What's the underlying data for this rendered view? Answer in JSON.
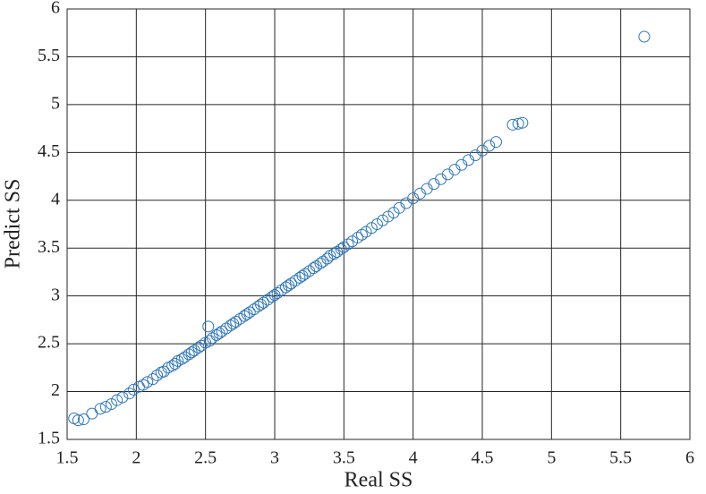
{
  "chart_data": {
    "type": "scatter",
    "x_label": "Real SS",
    "y_label": "Predict SS",
    "color": "#2e75b6",
    "grid": true,
    "xlim": [
      1.5,
      6
    ],
    "ylim": [
      1.5,
      6
    ],
    "xticks": [
      1.5,
      2,
      2.5,
      3,
      3.5,
      4,
      4.5,
      5,
      5.5,
      6
    ],
    "yticks": [
      1.5,
      2,
      2.5,
      3,
      3.5,
      4,
      4.5,
      5,
      5.5,
      6
    ],
    "series": [
      {
        "name": "SS",
        "x": [
          1.55,
          1.58,
          1.62,
          1.68,
          1.74,
          1.78,
          1.82,
          1.86,
          1.9,
          1.95,
          1.98,
          2.02,
          2.05,
          2.08,
          2.12,
          2.15,
          2.18,
          2.2,
          2.23,
          2.26,
          2.28,
          2.3,
          2.33,
          2.35,
          2.38,
          2.4,
          2.42,
          2.45,
          2.47,
          2.5,
          2.52,
          2.53,
          2.55,
          2.58,
          2.6,
          2.62,
          2.65,
          2.68,
          2.7,
          2.72,
          2.75,
          2.78,
          2.8,
          2.82,
          2.85,
          2.88,
          2.9,
          2.92,
          2.95,
          2.98,
          3.0,
          3.02,
          3.05,
          3.08,
          3.1,
          3.12,
          3.15,
          3.18,
          3.2,
          3.22,
          3.25,
          3.28,
          3.3,
          3.33,
          3.35,
          3.38,
          3.4,
          3.43,
          3.45,
          3.48,
          3.5,
          3.53,
          3.56,
          3.6,
          3.63,
          3.66,
          3.7,
          3.74,
          3.78,
          3.82,
          3.86,
          3.9,
          3.95,
          4.0,
          4.05,
          4.1,
          4.15,
          4.2,
          4.25,
          4.3,
          4.35,
          4.4,
          4.45,
          4.5,
          4.55,
          4.6,
          4.72,
          4.76,
          4.79,
          5.67
        ],
        "y": [
          1.72,
          1.7,
          1.71,
          1.77,
          1.82,
          1.84,
          1.87,
          1.91,
          1.94,
          1.98,
          2.02,
          2.05,
          2.07,
          2.1,
          2.13,
          2.17,
          2.2,
          2.21,
          2.25,
          2.27,
          2.29,
          2.32,
          2.34,
          2.36,
          2.39,
          2.41,
          2.43,
          2.46,
          2.48,
          2.51,
          2.68,
          2.53,
          2.56,
          2.59,
          2.61,
          2.63,
          2.66,
          2.69,
          2.71,
          2.73,
          2.76,
          2.79,
          2.81,
          2.83,
          2.86,
          2.89,
          2.91,
          2.93,
          2.96,
          2.99,
          3.01,
          3.03,
          3.06,
          3.09,
          3.11,
          3.13,
          3.16,
          3.19,
          3.21,
          3.23,
          3.26,
          3.29,
          3.31,
          3.34,
          3.36,
          3.39,
          3.42,
          3.44,
          3.46,
          3.49,
          3.51,
          3.54,
          3.57,
          3.61,
          3.64,
          3.67,
          3.71,
          3.75,
          3.79,
          3.83,
          3.87,
          3.92,
          3.97,
          4.02,
          4.07,
          4.12,
          4.17,
          4.22,
          4.27,
          4.32,
          4.37,
          4.42,
          4.47,
          4.52,
          4.57,
          4.61,
          4.79,
          4.8,
          4.81,
          5.71
        ]
      }
    ]
  }
}
